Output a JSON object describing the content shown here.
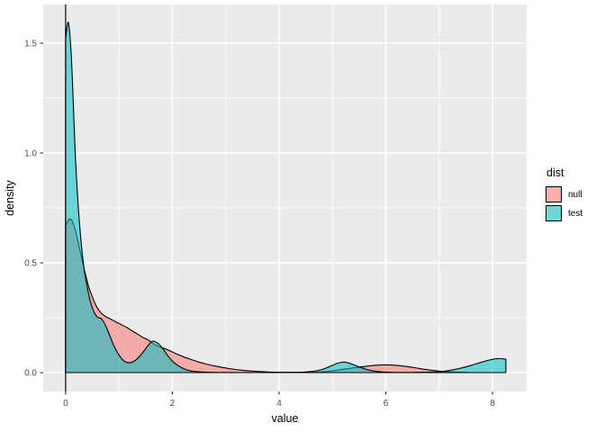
{
  "chart_data": {
    "type": "area",
    "subtype": "density",
    "xlabel": "value",
    "ylabel": "density",
    "legend_title": "dist",
    "legend_position": "right",
    "grid": true,
    "xlim": [
      -0.42,
      8.64
    ],
    "ylim": [
      -0.086,
      1.676
    ],
    "x_major_ticks": [
      0,
      2,
      4,
      6,
      8
    ],
    "x_tick_labels": [
      "0",
      "2",
      "4",
      "6",
      "8"
    ],
    "x_minor_ticks": [
      1,
      3,
      5,
      7
    ],
    "y_major_ticks": [
      0.0,
      0.5,
      1.0,
      1.5
    ],
    "y_tick_labels": [
      "0.0",
      "0.5",
      "1.0",
      "1.5"
    ],
    "y_minor_ticks": [
      0.25,
      0.75,
      1.25
    ],
    "vline_x": 0,
    "series": [
      {
        "name": "null",
        "color": "#F8766D",
        "fill_alpha": 0.55,
        "outline_color": "#000000",
        "points": [
          [
            0,
            0.67
          ],
          [
            0.08,
            0.7
          ],
          [
            0.14,
            0.68
          ],
          [
            0.2,
            0.63
          ],
          [
            0.26,
            0.565
          ],
          [
            0.32,
            0.5
          ],
          [
            0.38,
            0.44
          ],
          [
            0.44,
            0.385
          ],
          [
            0.5,
            0.345
          ],
          [
            0.56,
            0.31
          ],
          [
            0.62,
            0.285
          ],
          [
            0.68,
            0.268
          ],
          [
            0.75,
            0.255
          ],
          [
            0.85,
            0.243
          ],
          [
            0.95,
            0.23
          ],
          [
            1.05,
            0.218
          ],
          [
            1.15,
            0.205
          ],
          [
            1.25,
            0.19
          ],
          [
            1.35,
            0.175
          ],
          [
            1.45,
            0.16
          ],
          [
            1.55,
            0.148
          ],
          [
            1.65,
            0.13
          ],
          [
            1.75,
            0.118
          ],
          [
            1.85,
            0.11
          ],
          [
            1.95,
            0.1
          ],
          [
            2.05,
            0.088
          ],
          [
            2.15,
            0.078
          ],
          [
            2.25,
            0.068
          ],
          [
            2.35,
            0.06
          ],
          [
            2.5,
            0.048
          ],
          [
            2.65,
            0.038
          ],
          [
            2.8,
            0.03
          ],
          [
            2.95,
            0.023
          ],
          [
            3.1,
            0.017
          ],
          [
            3.3,
            0.011
          ],
          [
            3.5,
            0.007
          ],
          [
            3.7,
            0.004
          ],
          [
            3.9,
            0.002
          ],
          [
            4.2,
            0.001
          ],
          [
            4.5,
            0.001
          ],
          [
            4.75,
            0.003
          ],
          [
            5.0,
            0.008
          ],
          [
            5.2,
            0.015
          ],
          [
            5.4,
            0.022
          ],
          [
            5.6,
            0.028
          ],
          [
            5.8,
            0.033
          ],
          [
            6.0,
            0.035
          ],
          [
            6.15,
            0.034
          ],
          [
            6.35,
            0.029
          ],
          [
            6.55,
            0.022
          ],
          [
            6.75,
            0.014
          ],
          [
            6.95,
            0.008
          ],
          [
            7.15,
            0.004
          ],
          [
            7.35,
            0.002
          ],
          [
            7.55,
            0.001
          ]
        ]
      },
      {
        "name": "test",
        "color": "#00BFC4",
        "fill_alpha": 0.55,
        "outline_color": "#000000",
        "points": [
          [
            0,
            1.52
          ],
          [
            0.05,
            1.595
          ],
          [
            0.1,
            1.47
          ],
          [
            0.14,
            1.25
          ],
          [
            0.18,
            1.0
          ],
          [
            0.22,
            0.82
          ],
          [
            0.26,
            0.68
          ],
          [
            0.31,
            0.545
          ],
          [
            0.36,
            0.45
          ],
          [
            0.42,
            0.37
          ],
          [
            0.48,
            0.31
          ],
          [
            0.54,
            0.272
          ],
          [
            0.6,
            0.252
          ],
          [
            0.66,
            0.247
          ],
          [
            0.72,
            0.228
          ],
          [
            0.8,
            0.185
          ],
          [
            0.9,
            0.125
          ],
          [
            1.0,
            0.08
          ],
          [
            1.1,
            0.052
          ],
          [
            1.2,
            0.045
          ],
          [
            1.32,
            0.058
          ],
          [
            1.44,
            0.09
          ],
          [
            1.54,
            0.122
          ],
          [
            1.63,
            0.143
          ],
          [
            1.72,
            0.135
          ],
          [
            1.82,
            0.11
          ],
          [
            1.92,
            0.075
          ],
          [
            2.02,
            0.048
          ],
          [
            2.12,
            0.03
          ],
          [
            2.22,
            0.017
          ],
          [
            2.34,
            0.008
          ],
          [
            2.48,
            0.004
          ],
          [
            2.65,
            0.002
          ],
          [
            2.9,
            0.001
          ],
          [
            3.3,
            0.0005
          ],
          [
            3.7,
            0.0005
          ],
          [
            4.1,
            0.001
          ],
          [
            4.4,
            0.002
          ],
          [
            4.6,
            0.005
          ],
          [
            4.8,
            0.014
          ],
          [
            4.95,
            0.028
          ],
          [
            5.1,
            0.043
          ],
          [
            5.22,
            0.048
          ],
          [
            5.35,
            0.04
          ],
          [
            5.48,
            0.028
          ],
          [
            5.62,
            0.016
          ],
          [
            5.78,
            0.007
          ],
          [
            5.95,
            0.003
          ],
          [
            6.2,
            0.001
          ],
          [
            6.5,
            0.001
          ],
          [
            6.8,
            0.002
          ],
          [
            7.0,
            0.004
          ],
          [
            7.2,
            0.01
          ],
          [
            7.4,
            0.02
          ],
          [
            7.6,
            0.033
          ],
          [
            7.8,
            0.048
          ],
          [
            7.95,
            0.058
          ],
          [
            8.1,
            0.064
          ],
          [
            8.25,
            0.061
          ]
        ]
      }
    ]
  },
  "colors": {
    "page_bg": "#FFFFFF",
    "panel_bg": "#EBEBEB",
    "grid": "#FFFFFF",
    "tick_mark": "#333333",
    "axis_text": "#4D4D4D",
    "title_text": "#000000",
    "vline": "#000000",
    "legend_key_bg": "#F2F2F2"
  }
}
